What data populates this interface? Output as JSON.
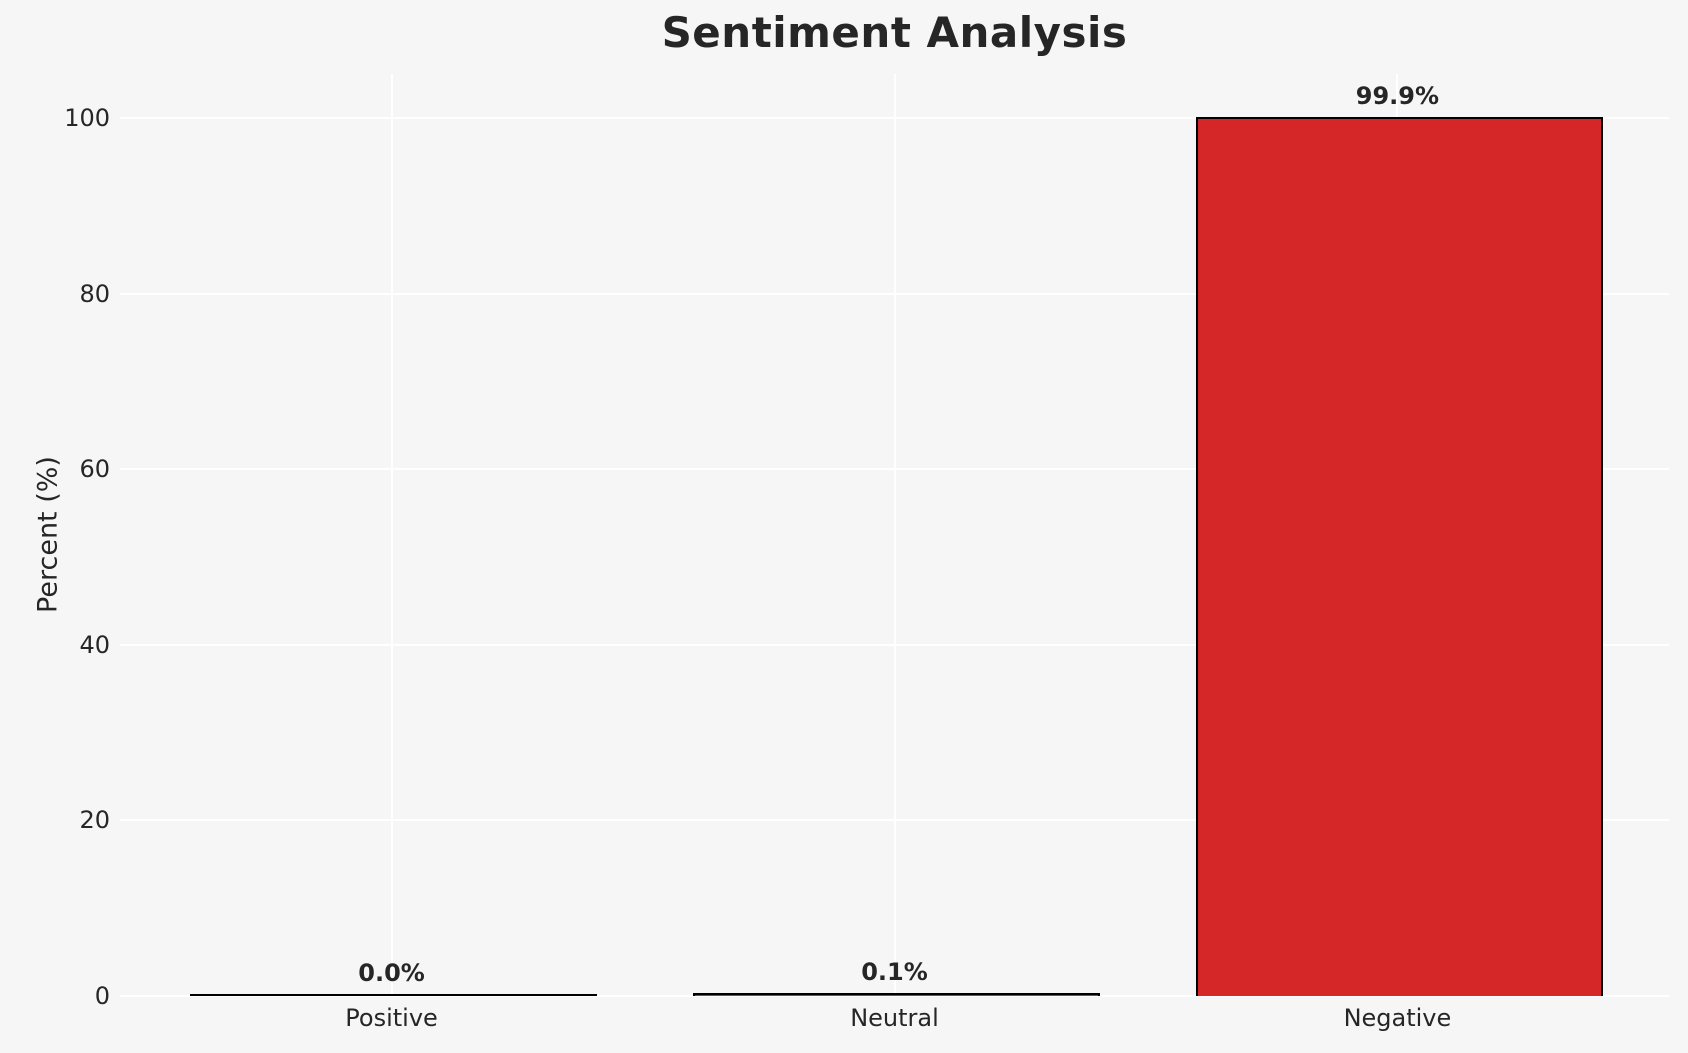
{
  "chart_data": {
    "type": "bar",
    "title": "Sentiment Analysis",
    "xlabel": "",
    "ylabel": "Percent (%)",
    "categories": [
      "Positive",
      "Neutral",
      "Negative"
    ],
    "values": [
      0.0,
      0.1,
      99.9
    ],
    "bar_labels": [
      "0.0%",
      "0.1%",
      "99.9%"
    ],
    "yticks": [
      0,
      20,
      40,
      60,
      80,
      100
    ],
    "ylim": [
      0,
      105
    ],
    "xlim": [
      -0.54,
      2.54
    ],
    "bar_unit_width": 0.8,
    "grid": true,
    "legend": false,
    "colors": {
      "bar_fill": "#d62728",
      "bar_edge": "#000000",
      "background": "#f6f6f6",
      "gridline": "#ffffff",
      "text": "#262626"
    }
  }
}
